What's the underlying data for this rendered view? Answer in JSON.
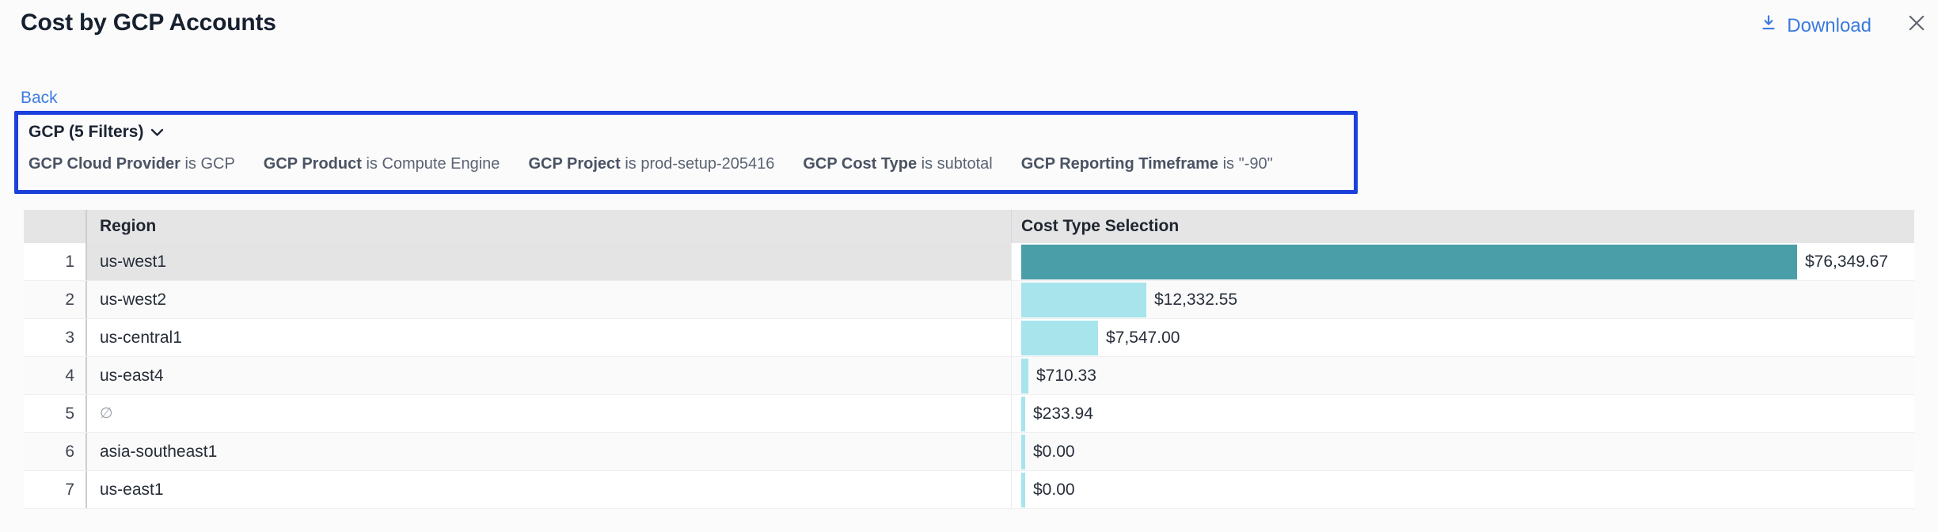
{
  "page": {
    "title": "Cost by GCP Accounts",
    "background_color": "#fbfbfc"
  },
  "toolbar": {
    "download_label": "Download",
    "download_icon": "download-icon",
    "close_icon": "close-icon"
  },
  "nav": {
    "back_label": "Back"
  },
  "filter_panel": {
    "summary_label": "GCP (5 Filters)",
    "summary_icon": "chevron-down-icon",
    "outline_color": "#1c40dc",
    "filters": [
      {
        "field": "GCP Cloud Provider",
        "relation": "is",
        "value": "GCP"
      },
      {
        "field": "GCP Product",
        "relation": "is",
        "value": "Compute Engine"
      },
      {
        "field": "GCP Project",
        "relation": "is",
        "value": "prod-setup-205416"
      },
      {
        "field": "GCP Cost Type",
        "relation": "is",
        "value": "subtotal"
      },
      {
        "field": "GCP Reporting Timeframe",
        "relation": "is",
        "value": "\"-90\""
      }
    ]
  },
  "table": {
    "columns": {
      "region": "Region",
      "cost": "Cost Type Selection"
    },
    "rows": [
      {
        "num": "1",
        "region": "us-west1",
        "region_empty": false,
        "value": 76349.67,
        "value_label": "$76,349.67",
        "selected": true
      },
      {
        "num": "2",
        "region": "us-west2",
        "region_empty": false,
        "value": 12332.55,
        "value_label": "$12,332.55",
        "selected": false
      },
      {
        "num": "3",
        "region": "us-central1",
        "region_empty": false,
        "value": 7547.0,
        "value_label": "$7,547.00",
        "selected": false
      },
      {
        "num": "4",
        "region": "us-east4",
        "region_empty": false,
        "value": 710.33,
        "value_label": "$710.33",
        "selected": false
      },
      {
        "num": "5",
        "region": "∅",
        "region_empty": true,
        "value": 233.94,
        "value_label": "$233.94",
        "selected": false
      },
      {
        "num": "6",
        "region": "asia-southeast1",
        "region_empty": false,
        "value": 0.0,
        "value_label": "$0.00",
        "selected": false
      },
      {
        "num": "7",
        "region": "us-east1",
        "region_empty": false,
        "value": 0.0,
        "value_label": "$0.00",
        "selected": false
      }
    ]
  },
  "chart_data": {
    "type": "bar",
    "orientation": "horizontal",
    "title": "Cost by GCP Accounts",
    "series_label": "Cost Type Selection",
    "categories": [
      "us-west1",
      "us-west2",
      "us-central1",
      "us-east4",
      "∅",
      "asia-southeast1",
      "us-east1"
    ],
    "values": [
      76349.67,
      12332.55,
      7547.0,
      710.33,
      233.94,
      0.0,
      0.0
    ],
    "value_labels": [
      "$76,349.67",
      "$12,332.55",
      "$7,547.00",
      "$710.33",
      "$233.94",
      "$0.00",
      "$0.00"
    ],
    "value_format": "USD",
    "xlim": [
      0,
      76349.67
    ],
    "grid": false,
    "legend": false
  },
  "colors": {
    "bar_default": "#a7e4ec",
    "bar_selected": "#4a9ea8",
    "link_blue": "#3b7ade",
    "filter_outline_blue": "#1c40dc",
    "header_bg": "#e5e5e6",
    "selected_cell_bg": "#e4e4e5",
    "stripe_bg": "#fafafa",
    "title_text": "#16202e"
  }
}
